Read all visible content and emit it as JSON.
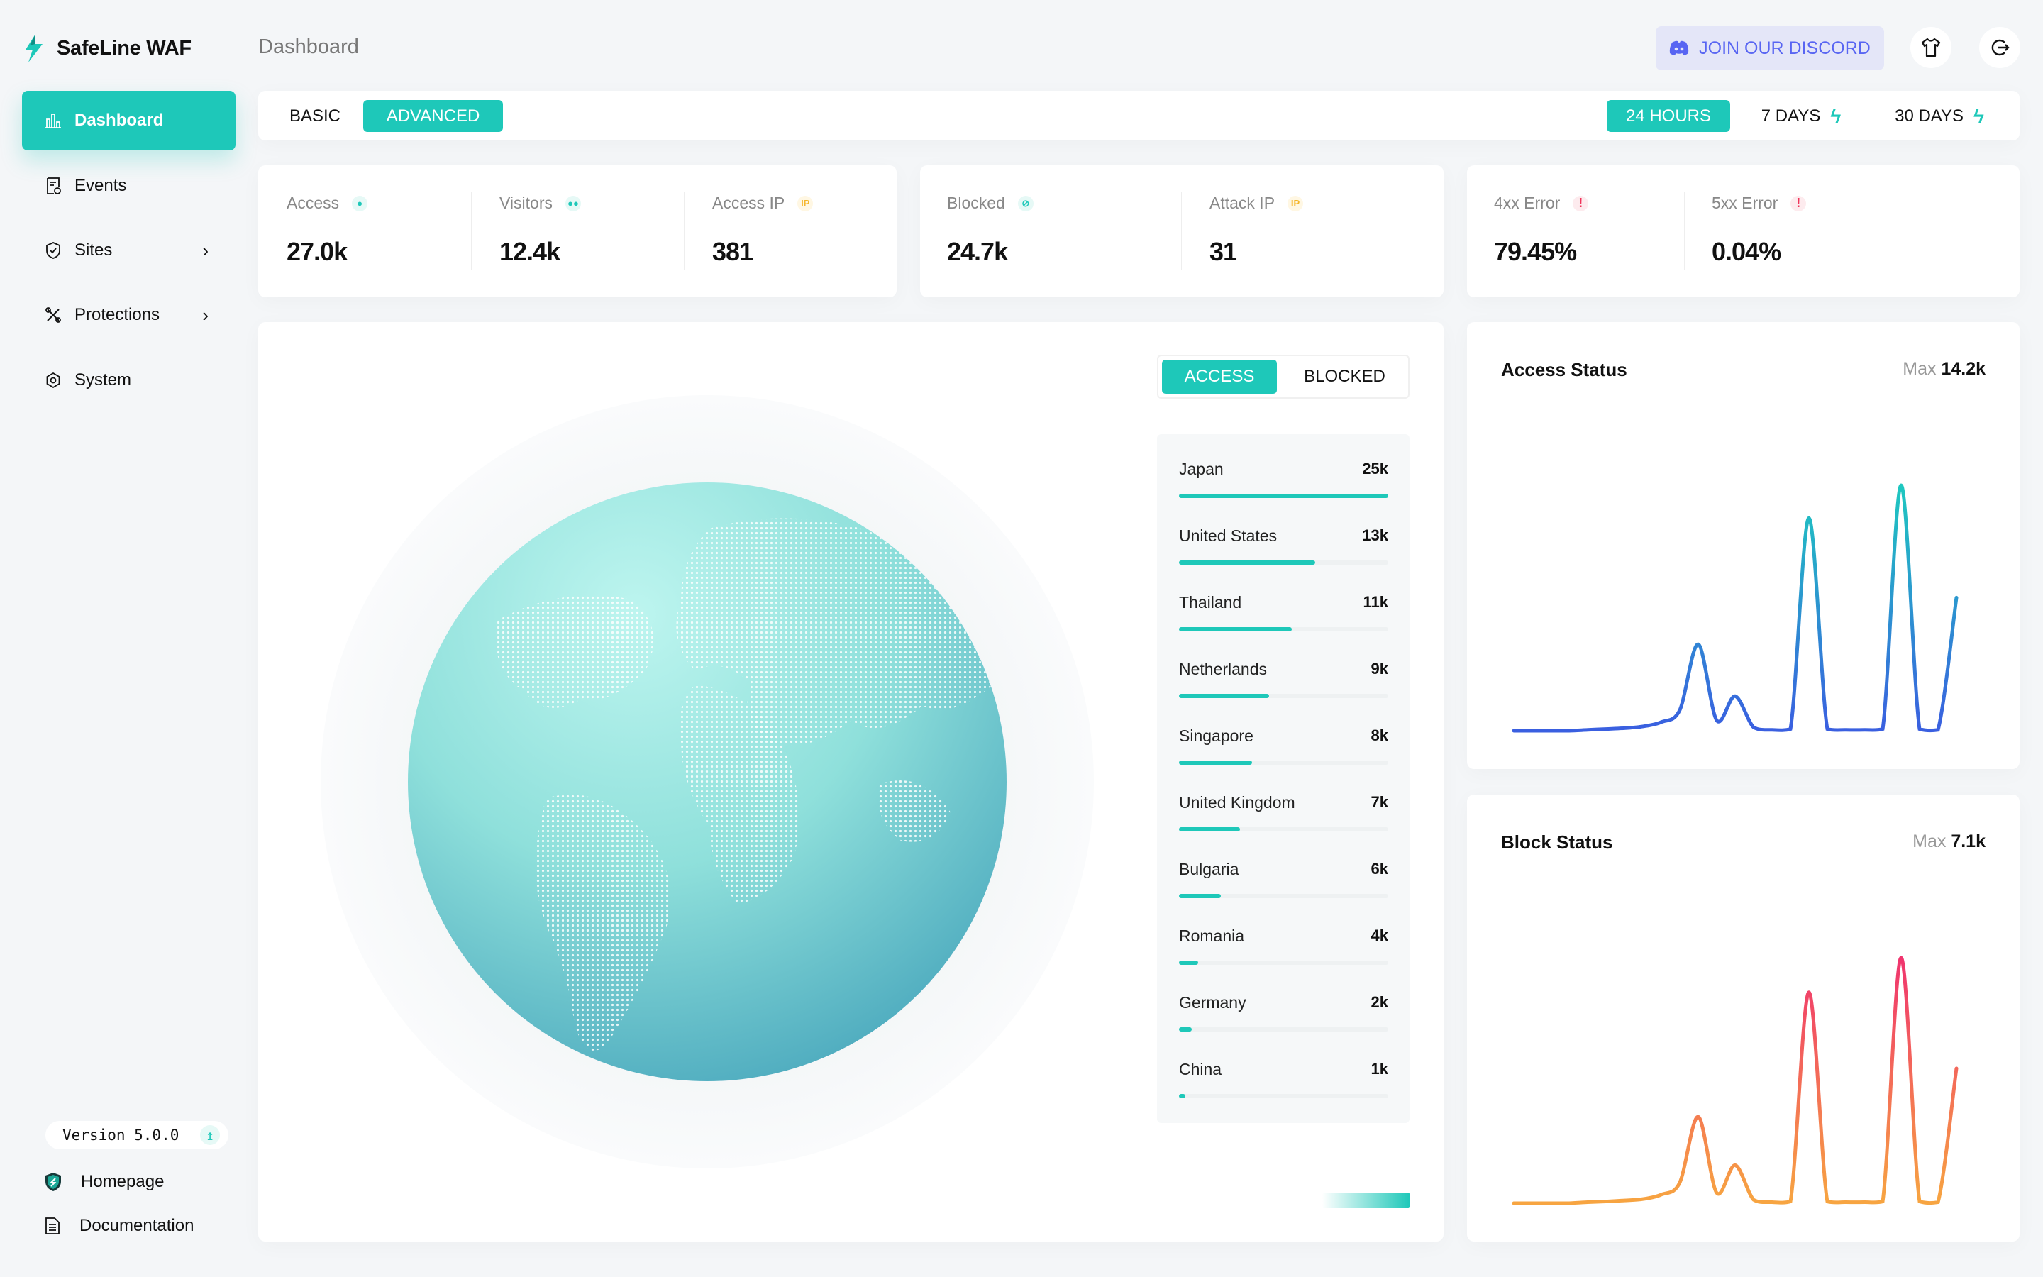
{
  "app": {
    "name": "SafeLine WAF",
    "page_title": "Dashboard"
  },
  "header": {
    "discord_label": "JOIN OUR DISCORD",
    "icons": [
      "discord-icon",
      "tshirt-icon",
      "logout-icon"
    ]
  },
  "sidebar": {
    "items": [
      {
        "label": "Dashboard",
        "icon": "bar-chart-icon",
        "active": true
      },
      {
        "label": "Events",
        "icon": "events-icon"
      },
      {
        "label": "Sites",
        "icon": "shield-icon",
        "has_children": true
      },
      {
        "label": "Protections",
        "icon": "tools-icon",
        "has_children": true
      },
      {
        "label": "System",
        "icon": "gear-icon"
      }
    ],
    "version": "Version 5.0.0",
    "footer": [
      {
        "label": "Homepage",
        "icon": "safeline-shield-icon"
      },
      {
        "label": "Documentation",
        "icon": "document-icon"
      }
    ]
  },
  "mode_tabs": [
    {
      "label": "BASIC",
      "active": false
    },
    {
      "label": "ADVANCED",
      "active": true
    }
  ],
  "range_tabs": [
    {
      "label": "24 HOURS",
      "active": true
    },
    {
      "label": "7 DAYS",
      "pro": true
    },
    {
      "label": "30 DAYS",
      "pro": true
    }
  ],
  "stats": [
    {
      "label": "Access",
      "value": "27.0k",
      "icon": "user-icon"
    },
    {
      "label": "Visitors",
      "value": "12.4k",
      "icon": "users-icon"
    },
    {
      "label": "Access IP",
      "value": "381",
      "badge": "IP"
    },
    {
      "label": "Blocked",
      "value": "24.7k",
      "icon": "blocked-icon"
    },
    {
      "label": "Attack IP",
      "value": "31",
      "badge": "IP"
    },
    {
      "label": "4xx Error",
      "value": "79.45%",
      "badge": "!"
    },
    {
      "label": "5xx Error",
      "value": "0.04%",
      "badge": "!"
    }
  ],
  "map": {
    "toggle": [
      {
        "label": "ACCESS",
        "active": true
      },
      {
        "label": "BLOCKED",
        "active": false
      }
    ],
    "countries": [
      {
        "name": "Japan",
        "value": "25k",
        "fill_pct": 100
      },
      {
        "name": "United States",
        "value": "13k",
        "fill_pct": 65
      },
      {
        "name": "Thailand",
        "value": "11k",
        "fill_pct": 54
      },
      {
        "name": "Netherlands",
        "value": "9k",
        "fill_pct": 43
      },
      {
        "name": "Singapore",
        "value": "8k",
        "fill_pct": 35
      },
      {
        "name": "United Kingdom",
        "value": "7k",
        "fill_pct": 29
      },
      {
        "name": "Bulgaria",
        "value": "6k",
        "fill_pct": 20
      },
      {
        "name": "Romania",
        "value": "4k",
        "fill_pct": 9
      },
      {
        "name": "Germany",
        "value": "2k",
        "fill_pct": 6
      },
      {
        "name": "China",
        "value": "1k",
        "fill_pct": 3
      }
    ]
  },
  "colors": {
    "accent": "#1ec8b9",
    "discord": "#5865f2",
    "error": "#f0345a",
    "ip": "#f5b62a",
    "access_line": [
      "#1ec8c0",
      "#3a5fe0"
    ],
    "block_line": [
      "#f0346e",
      "#f7a541"
    ]
  },
  "chart_data": [
    {
      "type": "line",
      "title": "Access Status",
      "max_label": "Max",
      "max_value": "14.2k",
      "values": [
        0,
        0,
        0,
        0,
        0.05,
        0.1,
        0.15,
        0.25,
        0.5,
        1.2,
        5.0,
        0.6,
        2.0,
        0.2,
        0.05,
        0.1,
        12.3,
        0.1,
        0.05,
        0.05,
        0.1,
        14.2,
        0.1,
        0.05,
        7.7
      ]
    },
    {
      "type": "line",
      "title": "Block Status",
      "max_label": "Max",
      "max_value": "7.1k",
      "values": [
        0,
        0,
        0,
        0,
        0.03,
        0.05,
        0.08,
        0.12,
        0.25,
        0.6,
        2.5,
        0.3,
        1.1,
        0.1,
        0.03,
        0.05,
        6.1,
        0.05,
        0.03,
        0.03,
        0.05,
        7.1,
        0.05,
        0.03,
        3.9
      ]
    }
  ]
}
